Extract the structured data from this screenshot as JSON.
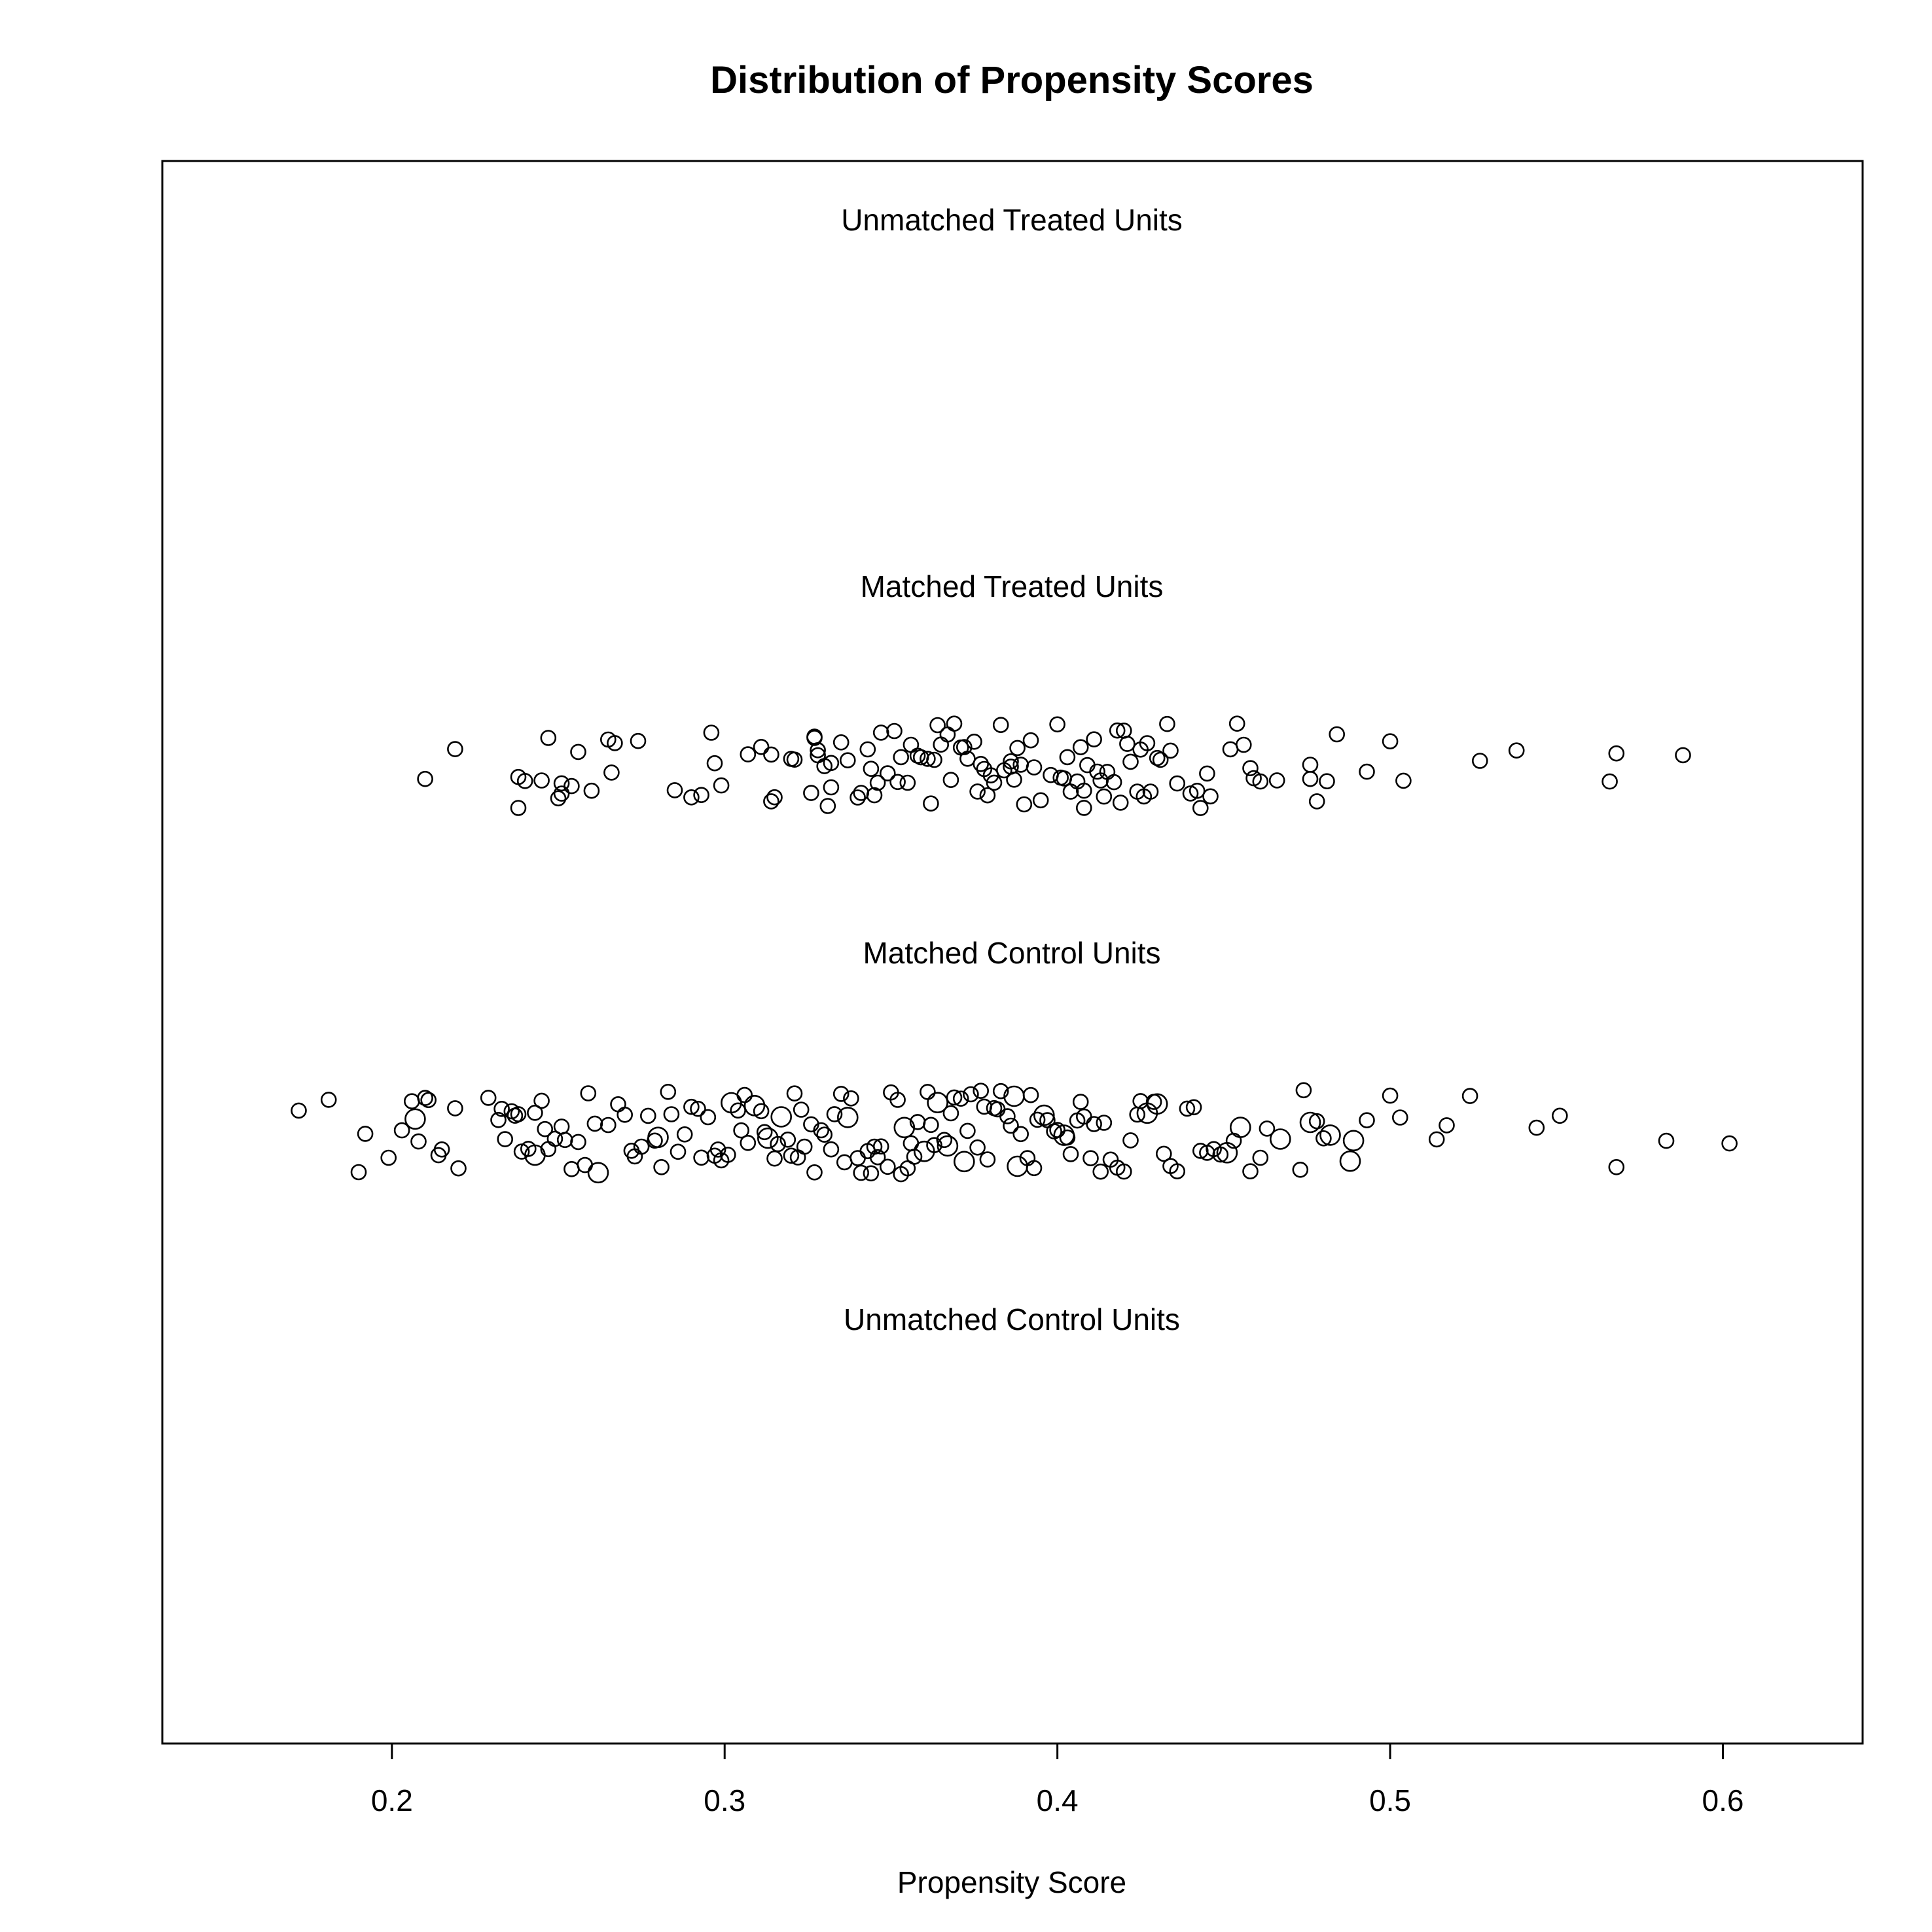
{
  "chart_data": {
    "type": "scatter",
    "title": "Distribution of Propensity Scores",
    "xlabel": "Propensity Score",
    "ylabel": "",
    "xlim": [
      0.131,
      0.642
    ],
    "x_ticks": [
      "0.2",
      "0.3",
      "0.4",
      "0.5",
      "0.6"
    ],
    "groups": [
      {
        "name": "Unmatched Treated Units",
        "x": []
      },
      {
        "name": "Matched Treated Units",
        "x": [
          0.21,
          0.219,
          0.238,
          0.238,
          0.24,
          0.245,
          0.247,
          0.25,
          0.251,
          0.251,
          0.254,
          0.256,
          0.26,
          0.265,
          0.266,
          0.267,
          0.274,
          0.285,
          0.29,
          0.293,
          0.296,
          0.297,
          0.299,
          0.307,
          0.311,
          0.314,
          0.314,
          0.315,
          0.32,
          0.321,
          0.326,
          0.327,
          0.327,
          0.328,
          0.328,
          0.33,
          0.331,
          0.332,
          0.332,
          0.335,
          0.337,
          0.34,
          0.341,
          0.343,
          0.344,
          0.345,
          0.346,
          0.347,
          0.349,
          0.351,
          0.352,
          0.353,
          0.355,
          0.356,
          0.358,
          0.359,
          0.361,
          0.362,
          0.363,
          0.364,
          0.365,
          0.367,
          0.368,
          0.369,
          0.371,
          0.372,
          0.373,
          0.375,
          0.376,
          0.377,
          0.378,
          0.379,
          0.38,
          0.381,
          0.383,
          0.384,
          0.386,
          0.386,
          0.387,
          0.388,
          0.389,
          0.39,
          0.392,
          0.393,
          0.395,
          0.398,
          0.4,
          0.401,
          0.402,
          0.403,
          0.404,
          0.406,
          0.407,
          0.408,
          0.408,
          0.409,
          0.411,
          0.412,
          0.413,
          0.414,
          0.415,
          0.417,
          0.418,
          0.419,
          0.42,
          0.421,
          0.422,
          0.424,
          0.425,
          0.426,
          0.427,
          0.428,
          0.43,
          0.431,
          0.433,
          0.434,
          0.436,
          0.44,
          0.442,
          0.443,
          0.445,
          0.446,
          0.452,
          0.454,
          0.456,
          0.458,
          0.459,
          0.461,
          0.466,
          0.476,
          0.476,
          0.478,
          0.481,
          0.484,
          0.493,
          0.5,
          0.504,
          0.527,
          0.538,
          0.566,
          0.568,
          0.588
        ]
      },
      {
        "name": "Matched Control Units",
        "x": [
          0.172,
          0.181,
          0.19,
          0.192,
          0.199,
          0.203,
          0.206,
          0.207,
          0.208,
          0.21,
          0.211,
          0.214,
          0.215,
          0.219,
          0.22,
          0.229,
          0.232,
          0.233,
          0.234,
          0.236,
          0.237,
          0.238,
          0.239,
          0.241,
          0.243,
          0.243,
          0.245,
          0.246,
          0.247,
          0.249,
          0.251,
          0.252,
          0.254,
          0.256,
          0.258,
          0.259,
          0.261,
          0.262,
          0.265,
          0.268,
          0.27,
          0.272,
          0.273,
          0.275,
          0.277,
          0.279,
          0.28,
          0.281,
          0.283,
          0.284,
          0.286,
          0.288,
          0.29,
          0.292,
          0.293,
          0.295,
          0.297,
          0.298,
          0.299,
          0.301,
          0.302,
          0.304,
          0.305,
          0.306,
          0.307,
          0.309,
          0.311,
          0.312,
          0.313,
          0.315,
          0.316,
          0.317,
          0.319,
          0.32,
          0.321,
          0.322,
          0.323,
          0.324,
          0.326,
          0.327,
          0.329,
          0.33,
          0.332,
          0.333,
          0.335,
          0.336,
          0.337,
          0.338,
          0.34,
          0.341,
          0.343,
          0.344,
          0.345,
          0.346,
          0.347,
          0.349,
          0.35,
          0.352,
          0.353,
          0.354,
          0.355,
          0.356,
          0.357,
          0.358,
          0.36,
          0.361,
          0.362,
          0.363,
          0.364,
          0.366,
          0.367,
          0.368,
          0.369,
          0.371,
          0.372,
          0.373,
          0.374,
          0.376,
          0.377,
          0.378,
          0.379,
          0.381,
          0.382,
          0.383,
          0.385,
          0.386,
          0.387,
          0.388,
          0.389,
          0.391,
          0.392,
          0.393,
          0.394,
          0.396,
          0.397,
          0.399,
          0.4,
          0.402,
          0.403,
          0.404,
          0.406,
          0.407,
          0.408,
          0.41,
          0.411,
          0.413,
          0.414,
          0.416,
          0.418,
          0.42,
          0.422,
          0.424,
          0.425,
          0.427,
          0.429,
          0.43,
          0.432,
          0.434,
          0.436,
          0.439,
          0.441,
          0.443,
          0.445,
          0.447,
          0.449,
          0.451,
          0.453,
          0.455,
          0.458,
          0.461,
          0.463,
          0.467,
          0.473,
          0.474,
          0.476,
          0.478,
          0.48,
          0.482,
          0.488,
          0.489,
          0.493,
          0.5,
          0.503,
          0.514,
          0.517,
          0.524,
          0.544,
          0.551,
          0.568,
          0.583,
          0.602
        ]
      },
      {
        "name": "Unmatched Control Units",
        "x": []
      }
    ],
    "grid": false,
    "legend": "none"
  }
}
